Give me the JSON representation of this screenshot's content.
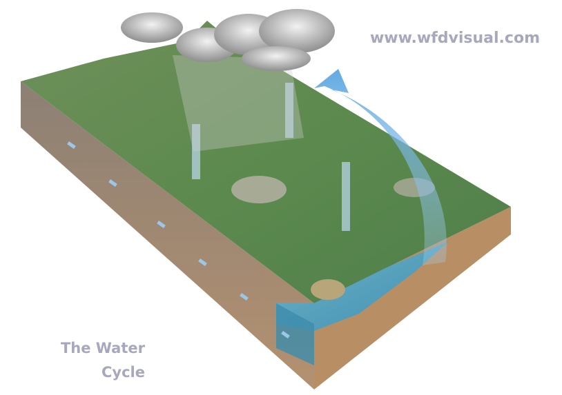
{
  "header": {
    "url": "www.wfdvisual.com"
  },
  "caption": {
    "lines": [
      "The Water",
      "Cycle"
    ]
  }
}
